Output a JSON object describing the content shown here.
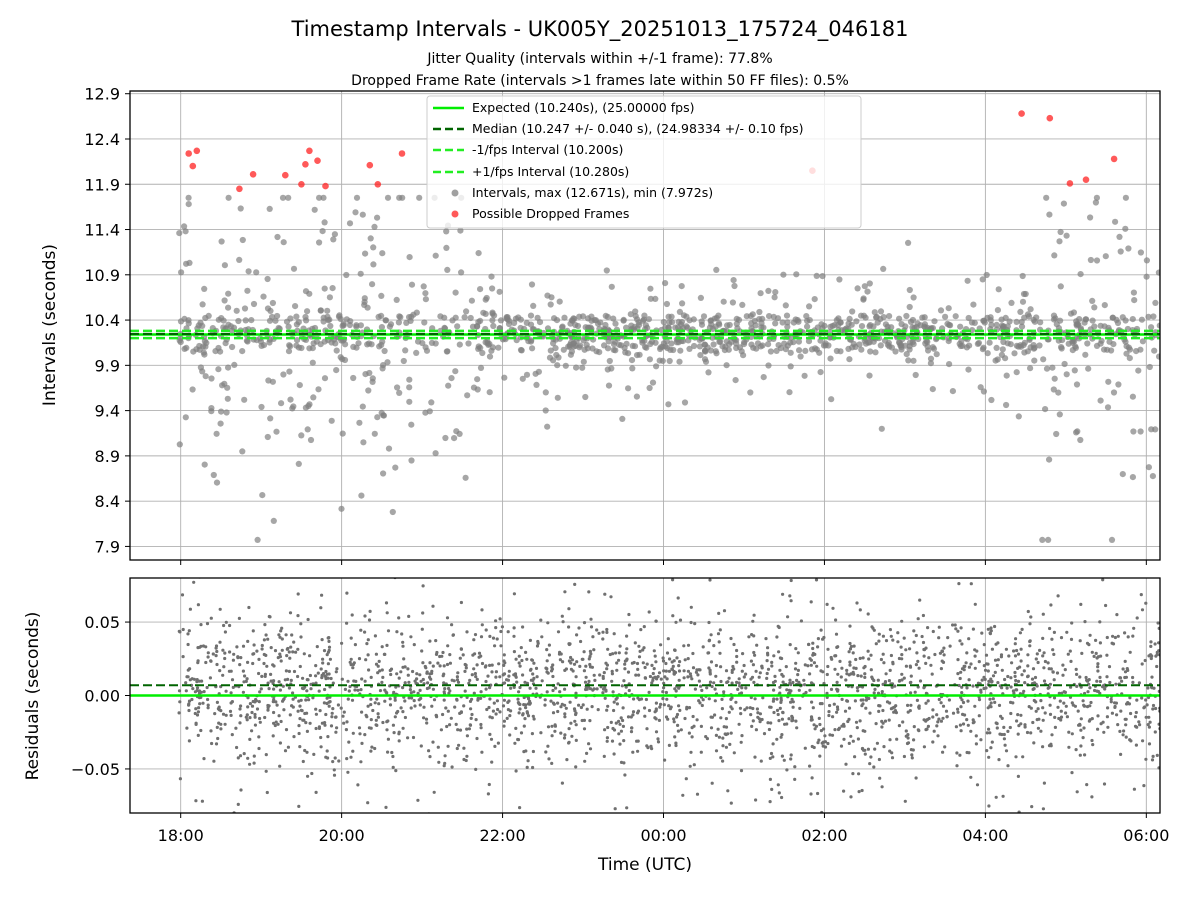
{
  "chart_data": [
    {
      "type": "scatter",
      "title": "Timestamp Intervals - UK005Y_20251013_175724_046181",
      "subtitle_lines": [
        "Jitter Quality (intervals within +/-1 frame): 77.8%",
        "Dropped Frame Rate (intervals >1 frames late within 50 FF files): 0.5%"
      ],
      "ylabel": "Intervals (seconds)",
      "x_range_hours": [
        17.37,
        30.17
      ],
      "ylim": [
        7.75,
        12.93
      ],
      "yticks": [
        7.9,
        8.4,
        8.9,
        9.4,
        9.9,
        10.4,
        10.9,
        11.4,
        11.9,
        12.4,
        12.9
      ],
      "ytick_labels": [
        "7.9",
        "8.4",
        "8.9",
        "9.4",
        "9.9",
        "10.4",
        "10.9",
        "11.4",
        "11.9",
        "12.4",
        "12.9"
      ],
      "xticks_hours": [
        18,
        20,
        22,
        24,
        26,
        28,
        30
      ],
      "grid": true,
      "legend_position": "upper center",
      "legend": [
        "Expected (10.240s), (25.00000 fps)",
        "Median (10.247 +/- 0.040 s), (24.98334 +/- 0.10 fps)",
        "-1/fps Interval (10.200s)",
        "+1/fps Interval (10.280s)",
        "Intervals, max (12.671s), min (7.972s)",
        "Possible Dropped Frames"
      ],
      "reference_lines": {
        "expected": 10.24,
        "median": 10.247,
        "minus_one_frame": 10.2,
        "plus_one_frame": 10.28
      },
      "summary": {
        "max_interval": 12.671,
        "min_interval": 7.972,
        "point_count_estimate": 4200,
        "dense_band": [
          10.05,
          10.45
        ],
        "wide_scatter_periods_hours": [
          [
            17.9,
            21.8
          ],
          [
            28.7,
            30.2
          ]
        ]
      },
      "dropped_frames": {
        "x_hours": [
          18.1,
          18.15,
          18.2,
          18.73,
          18.9,
          19.3,
          19.5,
          19.55,
          19.6,
          19.7,
          19.8,
          20.35,
          20.45,
          20.75,
          25.85,
          28.45,
          28.8,
          29.05,
          29.25,
          29.6
        ],
        "y": [
          12.24,
          12.1,
          12.27,
          11.85,
          12.01,
          12.0,
          11.9,
          12.12,
          12.27,
          12.16,
          11.88,
          12.11,
          11.9,
          12.24,
          12.05,
          12.68,
          12.63,
          11.91,
          11.95,
          12.18
        ]
      }
    },
    {
      "type": "scatter",
      "ylabel": "Residuals (seconds)",
      "xlabel": "Time (UTC)",
      "ylim": [
        -0.08,
        0.08
      ],
      "yticks": [
        -0.05,
        0.0,
        0.05
      ],
      "ytick_labels": [
        "−0.05",
        "0.00",
        "0.05"
      ],
      "xticks_hours": [
        18,
        20,
        22,
        24,
        26,
        28,
        30
      ],
      "xtick_labels": [
        "18:00",
        "20:00",
        "22:00",
        "00:00",
        "02:00",
        "04:00",
        "06:00"
      ],
      "grid": true,
      "reference_lines": {
        "expected": 0.0,
        "median": 0.007
      },
      "summary": {
        "point_count_estimate": 3600,
        "typical_spread": 0.025
      }
    }
  ],
  "colors": {
    "expected": "#00ee00",
    "median": "#006400",
    "interval_lines": "#22ee22",
    "points": "#808080",
    "dropped": "#ff2222",
    "grid": "#b0b0b0"
  }
}
